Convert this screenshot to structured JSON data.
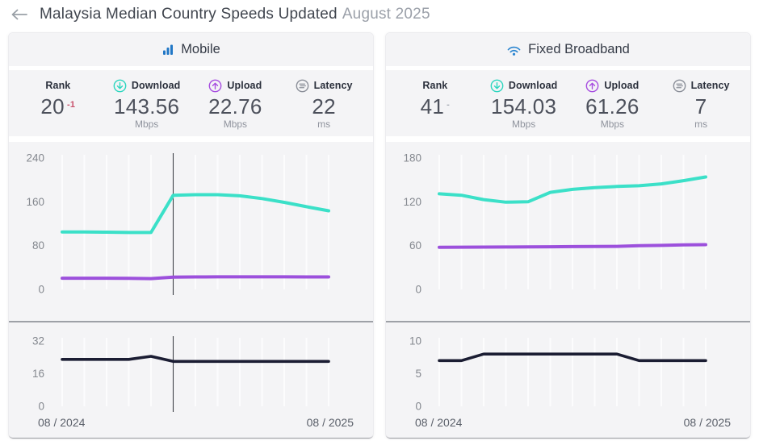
{
  "page": {
    "title_main": "Malaysia Median Country Speeds Updated",
    "title_date": "August 2025",
    "back_icon": "left-arrow-icon"
  },
  "colors": {
    "download_line": "#3BE0C8",
    "upload_line": "#9C50DC",
    "latency_line": "#1B1D33",
    "accent_blue": "#2177C6",
    "rank_change_down": "#C8506B",
    "panel_background": "#F4F4F6",
    "grid_line": "#FFFFFF",
    "marker_line": "#3D4046"
  },
  "cards": [
    {
      "title": "Mobile",
      "icon": "mobile-bars-icon",
      "stats": {
        "rank": {
          "label": "Rank",
          "value": "20",
          "change": "-1"
        },
        "download": {
          "label": "Download",
          "icon": "download-icon",
          "value": "143.56",
          "unit": "Mbps"
        },
        "upload": {
          "label": "Upload",
          "icon": "upload-icon",
          "value": "22.76",
          "unit": "Mbps"
        },
        "latency": {
          "label": "Latency",
          "icon": "latency-icon",
          "value": "22",
          "unit": "ms"
        }
      }
    },
    {
      "title": "Fixed Broadband",
      "icon": "wifi-icon",
      "stats": {
        "rank": {
          "label": "Rank",
          "value": "41",
          "change": "-"
        },
        "download": {
          "label": "Download",
          "icon": "download-icon",
          "value": "154.03",
          "unit": "Mbps"
        },
        "upload": {
          "label": "Upload",
          "icon": "upload-icon",
          "value": "61.26",
          "unit": "Mbps"
        },
        "latency": {
          "label": "Latency",
          "icon": "latency-icon",
          "value": "7",
          "unit": "ms"
        }
      }
    }
  ],
  "chart_data": [
    {
      "id": "mobile-speed",
      "type": "line",
      "title": "Mobile median speeds over time (Mbps)",
      "x": [
        "08/2024",
        "09/2024",
        "10/2024",
        "11/2024",
        "12/2024",
        "01/2025",
        "02/2025",
        "03/2025",
        "04/2025",
        "05/2025",
        "06/2025",
        "07/2025",
        "08/2025"
      ],
      "ylim": [
        0,
        240
      ],
      "yticks": [
        0,
        80,
        160,
        240
      ],
      "grid": "vertical",
      "legend": "none",
      "marker_index": 5,
      "series": [
        {
          "name": "Download",
          "color": "#3BE0C8",
          "values": [
            105,
            105,
            104.5,
            104,
            104,
            172,
            173,
            173,
            171,
            166,
            159,
            151,
            143.56
          ]
        },
        {
          "name": "Upload",
          "color": "#9C50DC",
          "values": [
            20.5,
            20.5,
            20.5,
            20.2,
            19.8,
            22.5,
            22.8,
            22.9,
            22.9,
            22.9,
            22.9,
            22.8,
            22.76
          ]
        }
      ]
    },
    {
      "id": "mobile-latency",
      "type": "line",
      "title": "Mobile median latency over time (ms)",
      "x": [
        "08/2024",
        "09/2024",
        "10/2024",
        "11/2024",
        "12/2024",
        "01/2025",
        "02/2025",
        "03/2025",
        "04/2025",
        "05/2025",
        "06/2025",
        "07/2025",
        "08/2025"
      ],
      "ylim": [
        0,
        32
      ],
      "yticks": [
        0,
        16,
        32
      ],
      "grid": "vertical",
      "legend": "none",
      "marker_index": 5,
      "x_start_label": "08 / 2024",
      "x_end_label": "08 / 2025",
      "series": [
        {
          "name": "Latency",
          "color": "#1B1D33",
          "values": [
            23,
            23,
            23,
            23,
            24.5,
            22,
            22,
            22,
            22,
            22,
            22,
            22,
            22
          ]
        }
      ]
    },
    {
      "id": "fixed-speed",
      "type": "line",
      "title": "Fixed broadband median speeds over time (Mbps)",
      "x": [
        "08/2024",
        "09/2024",
        "10/2024",
        "11/2024",
        "12/2024",
        "01/2025",
        "02/2025",
        "03/2025",
        "04/2025",
        "05/2025",
        "06/2025",
        "07/2025",
        "08/2025"
      ],
      "ylim": [
        0,
        180
      ],
      "yticks": [
        0,
        60,
        120,
        180
      ],
      "grid": "vertical",
      "legend": "none",
      "marker_index": null,
      "series": [
        {
          "name": "Download",
          "color": "#3BE0C8",
          "values": [
            131,
            129,
            123,
            119.5,
            120,
            133,
            137,
            139.5,
            141,
            142,
            144.5,
            149,
            154.03
          ]
        },
        {
          "name": "Upload",
          "color": "#9C50DC",
          "values": [
            57.8,
            57.9,
            58,
            58.1,
            58.2,
            58.4,
            58.6,
            58.8,
            59,
            59.8,
            60.3,
            61,
            61.26
          ]
        }
      ]
    },
    {
      "id": "fixed-latency",
      "type": "line",
      "title": "Fixed broadband median latency over time (ms)",
      "x": [
        "08/2024",
        "09/2024",
        "10/2024",
        "11/2024",
        "12/2024",
        "01/2025",
        "02/2025",
        "03/2025",
        "04/2025",
        "05/2025",
        "06/2025",
        "07/2025",
        "08/2025"
      ],
      "ylim": [
        0,
        10
      ],
      "yticks": [
        0,
        5,
        10
      ],
      "grid": "vertical",
      "legend": "none",
      "marker_index": null,
      "x_start_label": "08 / 2024",
      "x_end_label": "08 / 2025",
      "series": [
        {
          "name": "Latency",
          "color": "#1B1D33",
          "values": [
            7,
            7,
            8,
            8,
            8,
            8,
            8,
            8,
            8,
            7,
            7,
            7,
            7
          ]
        }
      ]
    }
  ]
}
